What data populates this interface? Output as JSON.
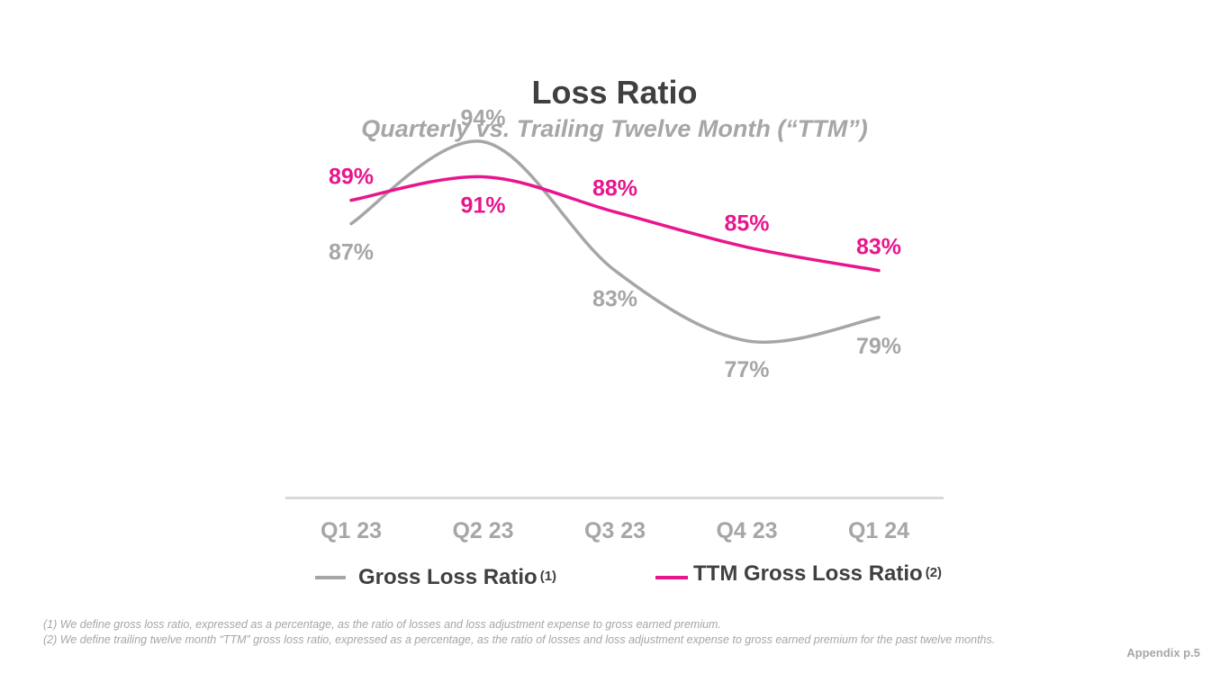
{
  "chart_data": {
    "type": "line",
    "title": "Loss Ratio",
    "subtitle": "Quarterly vs. Trailing Twelve Month (“TTM”)",
    "categories": [
      "Q1 23",
      "Q2 23",
      "Q3 23",
      "Q4 23",
      "Q1 24"
    ],
    "series": [
      {
        "name": "Gross Loss Ratio",
        "footnote_ref": "(1)",
        "color": "#a6a6a6",
        "values": [
          87,
          94,
          83,
          77,
          79
        ],
        "labels": [
          "87%",
          "94%",
          "83%",
          "77%",
          "79%"
        ],
        "label_position": [
          "below",
          "above",
          "below",
          "below",
          "below"
        ]
      },
      {
        "name": "TTM Gross Loss Ratio",
        "footnote_ref": "(2)",
        "color": "#e8168d",
        "values": [
          89,
          91,
          88,
          85,
          83
        ],
        "labels": [
          "89%",
          "91%",
          "88%",
          "85%",
          "83%"
        ],
        "label_position": [
          "above",
          "below",
          "above",
          "above",
          "above"
        ]
      }
    ],
    "ylim": [
      65,
      100
    ],
    "xlabel": "",
    "ylabel": "",
    "grid": false,
    "legend": "bottom"
  },
  "footnotes": [
    "(1) We define gross loss ratio, expressed as a percentage, as the ratio of losses and loss adjustment expense to gross earned premium.",
    "(2) We define trailing twelve month “TTM” gross loss ratio, expressed as a percentage, as the ratio of losses and loss adjustment expense to gross earned premium for the past twelve months."
  ],
  "page_label": "Appendix p.5"
}
